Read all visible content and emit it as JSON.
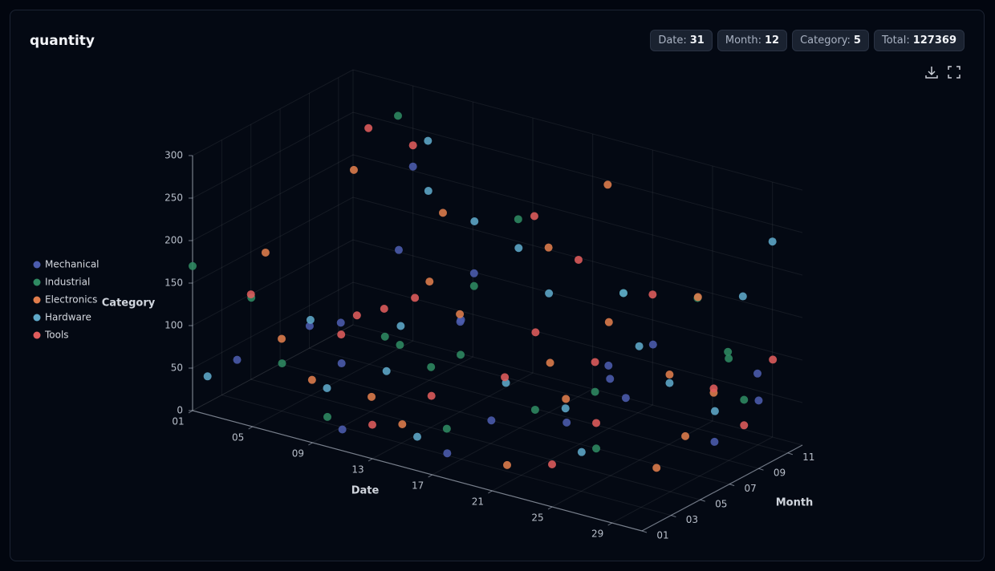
{
  "title": "quantity",
  "badges": [
    {
      "label": "Date:",
      "value": 31
    },
    {
      "label": "Month:",
      "value": 12
    },
    {
      "label": "Category:",
      "value": 5
    },
    {
      "label": "Total:",
      "value": 127369
    }
  ],
  "chart_data": {
    "type": "scatter3d",
    "x_label": "Date",
    "y_label": "Month",
    "z_label": "Category",
    "xlim": [
      1,
      31
    ],
    "ylim": [
      1,
      12
    ],
    "zlim": [
      0,
      300
    ],
    "xticks": [
      {
        "value": 1,
        "label": "01"
      },
      {
        "value": 5,
        "label": "05"
      },
      {
        "value": 9,
        "label": "09"
      },
      {
        "value": 13,
        "label": "13"
      },
      {
        "value": 17,
        "label": "17"
      },
      {
        "value": 21,
        "label": "21"
      },
      {
        "value": 25,
        "label": "25"
      },
      {
        "value": 29,
        "label": "29"
      }
    ],
    "yticks": [
      {
        "value": 1,
        "label": "01"
      },
      {
        "value": 3,
        "label": "03"
      },
      {
        "value": 5,
        "label": "05"
      },
      {
        "value": 7,
        "label": "07"
      },
      {
        "value": 9,
        "label": "09"
      },
      {
        "value": 11,
        "label": "11"
      }
    ],
    "zticks": [
      0,
      50,
      100,
      150,
      200,
      250,
      300
    ],
    "grid": true,
    "series": [
      {
        "name": "Mechanical",
        "color": "#4c5cae",
        "x": [
          3,
          7,
          12,
          18,
          22,
          27,
          30,
          5,
          9,
          14,
          20,
          25,
          2,
          16,
          28,
          11,
          24,
          6,
          19,
          31
        ],
        "y": [
          2,
          5,
          9,
          1,
          11,
          4,
          7,
          12,
          3,
          6,
          10,
          2,
          8,
          4,
          12,
          1,
          6,
          10,
          3,
          9
        ],
        "values": [
          60,
          95,
          140,
          30,
          85,
          110,
          45,
          205,
          75,
          120,
          60,
          90,
          40,
          150,
          70,
          25,
          100,
          130,
          55,
          80
        ]
      },
      {
        "name": "Industrial",
        "color": "#2f8a62",
        "x": [
          2,
          8,
          13,
          17,
          23,
          29,
          4,
          10,
          15,
          21,
          26,
          31,
          6,
          12,
          19,
          27,
          1,
          14,
          24,
          9
        ],
        "y": [
          4,
          7,
          11,
          2,
          6,
          9,
          12,
          1,
          5,
          10,
          3,
          8,
          2,
          9,
          6,
          11,
          1,
          4,
          12,
          7
        ],
        "values": [
          110,
          65,
          190,
          45,
          80,
          120,
          260,
          35,
          95,
          150,
          55,
          90,
          70,
          125,
          40,
          100,
          170,
          85,
          140,
          60
        ]
      },
      {
        "name": "Electronics",
        "color": "#e07d4c",
        "x": [
          5,
          10,
          15,
          20,
          25,
          30,
          3,
          8,
          13,
          18,
          23,
          28,
          1,
          11,
          16,
          22,
          27,
          7,
          21,
          31
        ],
        "y": [
          3,
          8,
          1,
          6,
          11,
          5,
          10,
          2,
          7,
          12,
          4,
          9,
          6,
          3,
          10,
          1,
          7,
          12,
          9,
          2
        ],
        "values": [
          85,
          130,
          50,
          100,
          155,
          70,
          210,
          60,
          115,
          245,
          90,
          75,
          140,
          45,
          180,
          35,
          110,
          160,
          125,
          65
        ]
      },
      {
        "name": "Hardware",
        "color": "#5fa9c9",
        "x": [
          4,
          9,
          14,
          19,
          24,
          29,
          2,
          7,
          12,
          17,
          22,
          27,
          6,
          11,
          16,
          21,
          26,
          31,
          13,
          28
        ],
        "y": [
          6,
          2,
          10,
          4,
          8,
          12,
          1,
          11,
          3,
          9,
          5,
          7,
          12,
          5,
          1,
          10,
          2,
          6,
          8,
          11
        ],
        "values": [
          75,
          55,
          170,
          90,
          120,
          230,
          45,
          195,
          80,
          140,
          65,
          100,
          240,
          110,
          40,
          150,
          60,
          95,
          215,
          170
        ]
      },
      {
        "name": "Tools",
        "color": "#e05c5c",
        "x": [
          1,
          6,
          11,
          16,
          21,
          26,
          31,
          3,
          8,
          13,
          18,
          23,
          28,
          5,
          10,
          15,
          20,
          25,
          30,
          17
        ],
        "y": [
          5,
          9,
          2,
          7,
          12,
          3,
          8,
          11,
          4,
          1,
          10,
          6,
          9,
          12,
          7,
          3,
          5,
          1,
          11,
          8
        ],
        "values": [
          100,
          70,
          150,
          55,
          130,
          85,
          60,
          250,
          95,
          40,
          175,
          115,
          80,
          230,
          120,
          65,
          145,
          50,
          105,
          240
        ]
      }
    ]
  }
}
